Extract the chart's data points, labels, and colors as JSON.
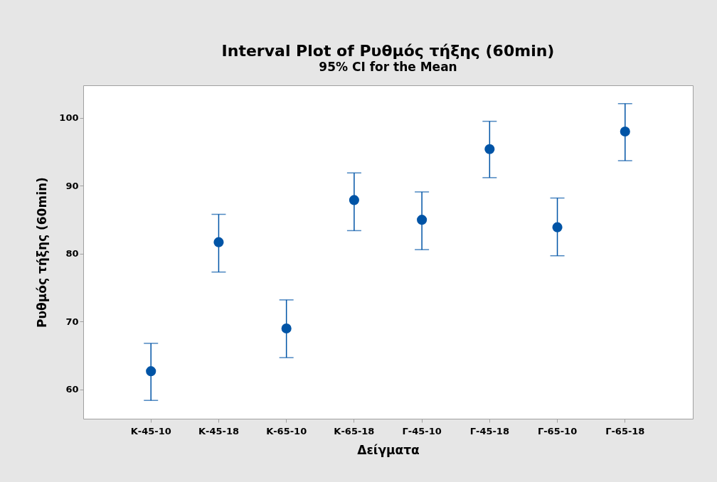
{
  "chart_data": {
    "type": "scatter",
    "title": "Interval Plot of Ρυθμός τήξης (60min)",
    "subtitle": "95% CI for the Mean",
    "xlabel": "Δείγματα",
    "ylabel": "Ρυθμός τήξης (60min)",
    "categories": [
      "Κ-45-10",
      "Κ-45-18",
      "Κ-65-10",
      "Κ-65-18",
      "Γ-45-10",
      "Γ-45-18",
      "Γ-65-10",
      "Γ-65-18"
    ],
    "series": [
      {
        "color": "#0054a6",
        "values": [
          62.7,
          81.7,
          69.0,
          87.9,
          85.0,
          95.4,
          83.9,
          98.0
        ],
        "errors": [
          [
            58.4,
            66.8
          ],
          [
            77.3,
            85.8
          ],
          [
            64.7,
            73.2
          ],
          [
            83.4,
            91.9
          ],
          [
            80.6,
            89.1
          ],
          [
            91.2,
            99.5
          ],
          [
            79.7,
            88.2
          ],
          [
            93.7,
            102.1
          ]
        ]
      }
    ],
    "ylim": [
      55.7,
      104.8
    ],
    "yticks": [
      60,
      70,
      80,
      90,
      100
    ],
    "marker": "circle"
  }
}
